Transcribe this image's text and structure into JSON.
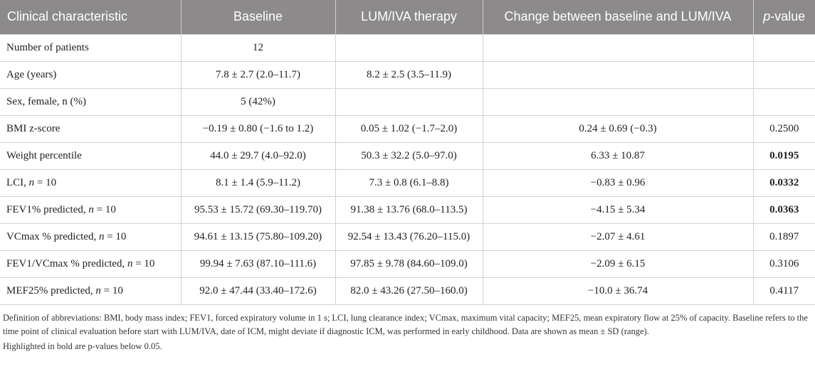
{
  "table": {
    "headers": {
      "characteristic": "Clinical characteristic",
      "baseline": "Baseline",
      "therapy": "LUM/IVA therapy",
      "change": "Change between baseline and LUM/IVA",
      "pvalue_prefix": "p",
      "pvalue_suffix": "-value"
    },
    "rows": [
      {
        "label": "Number of patients",
        "baseline": "12",
        "therapy": "",
        "change": "",
        "pvalue": "",
        "pvalue_bold": false
      },
      {
        "label": "Age (years)",
        "baseline": "7.8 ± 2.7 (2.0–11.7)",
        "therapy": "8.2 ± 2.5 (3.5–11.9)",
        "change": "",
        "pvalue": "",
        "pvalue_bold": false
      },
      {
        "label": "Sex, female, n (%)",
        "baseline": "5 (42%)",
        "therapy": "",
        "change": "",
        "pvalue": "",
        "pvalue_bold": false
      },
      {
        "label": "BMI z-score",
        "baseline": "−0.19 ± 0.80 (−1.6 to 1.2)",
        "therapy": "0.05 ± 1.02 (−1.7–2.0)",
        "change": "0.24 ± 0.69 (−0.3)",
        "pvalue": "0.2500",
        "pvalue_bold": false
      },
      {
        "label": "Weight percentile",
        "baseline": "44.0 ± 29.7 (4.0–92.0)",
        "therapy": "50.3 ± 32.2 (5.0–97.0)",
        "change": "6.33 ± 10.87",
        "pvalue": "0.0195",
        "pvalue_bold": true
      },
      {
        "label": "LCI,",
        "label_n": "n",
        "label_suffix": " = 10",
        "baseline": "8.1 ± 1.4 (5.9–11.2)",
        "therapy": "7.3 ± 0.8 (6.1–8.8)",
        "change": "−0.83 ± 0.96",
        "pvalue": "0.0332",
        "pvalue_bold": true
      },
      {
        "label": "FEV1% predicted,",
        "label_n": "n",
        "label_suffix": " = 10",
        "baseline": "95.53 ± 15.72 (69.30–119.70)",
        "therapy": "91.38 ± 13.76 (68.0–113.5)",
        "change": "−4.15 ± 5.34",
        "pvalue": "0.0363",
        "pvalue_bold": true
      },
      {
        "label": "VCmax % predicted,",
        "label_n": "n",
        "label_suffix": " = 10",
        "baseline": "94.61 ± 13.15 (75.80–109.20)",
        "therapy": "92.54 ± 13.43 (76.20–115.0)",
        "change": "−2.07 ± 4.61",
        "pvalue": "0.1897",
        "pvalue_bold": false
      },
      {
        "label": "FEV1/VCmax % predicted,",
        "label_n": "n",
        "label_suffix": " = 10",
        "baseline": "99.94 ± 7.63 (87.10–111.6)",
        "therapy": "97.85 ± 9.78 (84.60–109.0)",
        "change": "−2.09 ± 6.15",
        "pvalue": "0.3106",
        "pvalue_bold": false
      },
      {
        "label": "MEF25% predicted,",
        "label_n": "n",
        "label_suffix": " = 10",
        "baseline": "92.0 ± 47.44 (33.40–172.6)",
        "therapy": "82.0 ± 43.26 (27.50–160.0)",
        "change": "−10.0 ± 36.74",
        "pvalue": "0.4117",
        "pvalue_bold": false
      }
    ]
  },
  "footnotes": {
    "definitions": "Definition of abbreviations: BMI, body mass index; FEV1, forced expiratory volume in 1 s; LCI, lung clearance index; VCmax, maximum vital capacity; MEF25, mean expiratory flow at 25% of capacity. Baseline refers to the time point of clinical evaluation before start with LUM/IVA, date of ICM, might deviate if diagnostic ICM, was performed in early childhood. Data are shown as mean ± SD (range).",
    "highlight": "Highlighted in bold are p-values below 0.05."
  }
}
